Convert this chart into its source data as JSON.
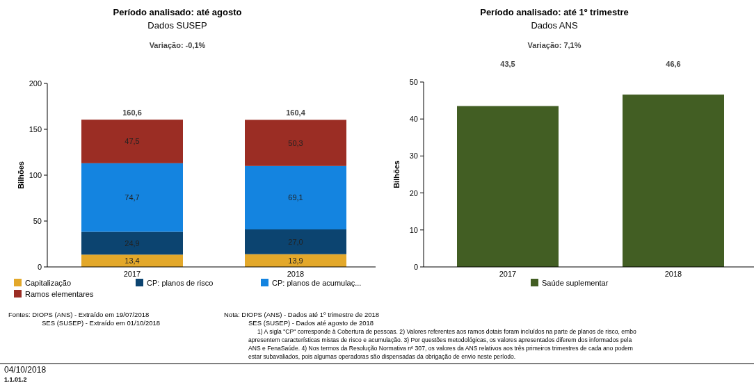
{
  "chart_data": [
    {
      "type": "bar",
      "title": "Período analisado: até agosto",
      "subtitle": "Dados SUSEP",
      "ylabel": "Bilhões",
      "categories": [
        "2017",
        "2018"
      ],
      "stacked": true,
      "ylim": [
        0,
        200
      ],
      "yticks": [
        0,
        50,
        100,
        150,
        200
      ],
      "legend": "bottom",
      "totals": [
        "160,6",
        "160,4"
      ],
      "series": [
        {
          "name": "Capitalização",
          "color": "#e3a82a",
          "values": [
            13.4,
            13.9
          ],
          "value_labels": [
            "13,4",
            "13,9"
          ]
        },
        {
          "name": "CP: planos de risco",
          "color": "#0c4470",
          "values": [
            24.9,
            27.0
          ],
          "value_labels": [
            "24,9",
            "27,0"
          ]
        },
        {
          "name": "CP: planos de acumulaç...",
          "color": "#1484e0",
          "values": [
            74.7,
            69.1
          ],
          "value_labels": [
            "74,7",
            "69,1"
          ]
        },
        {
          "name": "Ramos elementares",
          "color": "#9b2d24",
          "values": [
            47.5,
            50.3
          ],
          "value_labels": [
            "47,5",
            "50,3"
          ]
        }
      ],
      "annotations": [
        "Variação: -0,1%",
        "Fontes: DIOPS (ANS) - Extraído em 19/07/2018",
        "SES (SUSEP) - Extraído em 01/10/2018",
        "Nota: DIOPS (ANS) - Dados até 1º trimestre de 2018",
        "SES (SUSEP) - Dados até agosto de 2018",
        "1) A sigla \"CP\" corresponde à Cobertura de pessoas. 2) Valores referentes aos ramos dotais foram incluídos na parte de planos de risco, embo",
        "apresentem características mistas de risco e acumulação. 3) Por questões metodológicas, os valores apresentados diferem dos informados pela",
        "ANS e FenaSaúde. 4) Nos termos da Resolução Normativa nº 307, os valores da ANS relativos aos três primeiros trimestres de cada ano podem",
        "estar subavaliados, pois algumas operadoras são dispensadas da obrigação de envio neste período.",
        "04/10/2018",
        "1.1.01.2"
      ]
    },
    {
      "type": "bar",
      "title": "Período analisado: até 1º trimestre",
      "subtitle": "Dados ANS",
      "ylabel": "Bilhões",
      "categories": [
        "2017",
        "2018"
      ],
      "ylim": [
        0,
        50
      ],
      "yticks": [
        0,
        10,
        20,
        30,
        40,
        50
      ],
      "legend": "bottom",
      "series": [
        {
          "name": "Saúde suplementar",
          "color": "#425e23",
          "values": [
            43.5,
            46.6
          ],
          "value_labels": [
            "43,5",
            "46,6"
          ]
        }
      ],
      "annotations": [
        "Variação: 7,1%"
      ]
    }
  ]
}
